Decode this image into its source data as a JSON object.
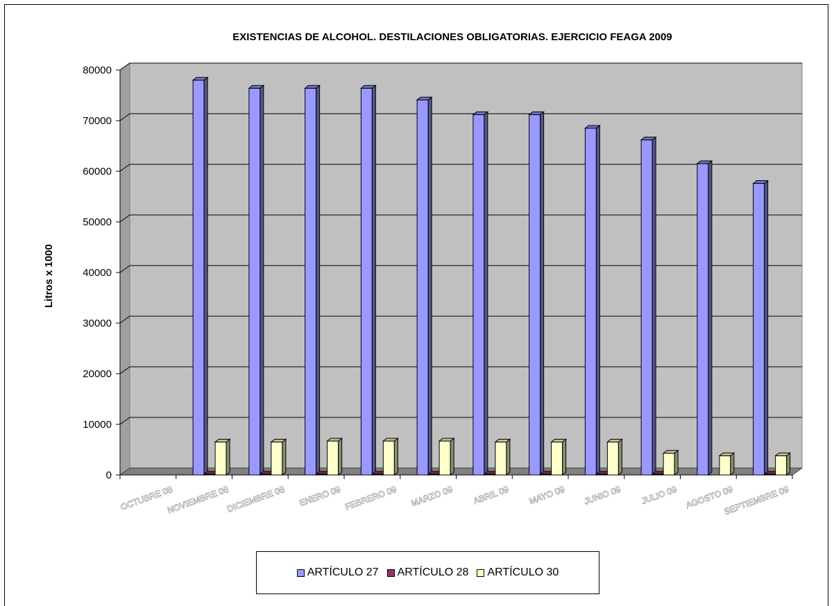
{
  "chart_data": {
    "type": "bar",
    "title": "EXISTENCIAS DE ALCOHOL. DESTILACIONES OBLIGATORIAS. EJERCICIO FEAGA 2009",
    "xlabel": "",
    "ylabel": "Litros x 1000",
    "ylim": [
      0,
      80000
    ],
    "yticks": [
      "0",
      "10000",
      "20000",
      "30000",
      "40000",
      "50000",
      "60000",
      "70000",
      "80000"
    ],
    "categories": [
      "OCTUBRE 08",
      "NOVIEMBRE 08",
      "DICIEMBRE 08",
      "ENERO 09",
      "FEBRERO 09",
      "MARZO 09",
      "ABRIL 09",
      "MAYO 09",
      "JUNIO 09",
      "JULIO 09",
      "AGOSTO 09",
      "SEPTIEMBRE 09"
    ],
    "series": [
      {
        "name": "ARTÍCULO 27",
        "color": "#9999ff",
        "values": [
          null,
          78000,
          76400,
          76400,
          76400,
          74100,
          71200,
          71200,
          68500,
          66200,
          61500,
          57600
        ]
      },
      {
        "name": "ARTÍCULO 28",
        "color": "#993366",
        "values": [
          null,
          150,
          150,
          150,
          150,
          150,
          150,
          150,
          150,
          150,
          0,
          150
        ]
      },
      {
        "name": "ARTÍCULO 30",
        "color": "#ffffcc",
        "values": [
          null,
          6500,
          6500,
          6700,
          6700,
          6700,
          6500,
          6500,
          6500,
          4300,
          3800,
          3800
        ]
      }
    ],
    "series_values_note": null,
    "grid": true,
    "legend_position": "bottom",
    "plot_background": "#c0c0c0"
  }
}
